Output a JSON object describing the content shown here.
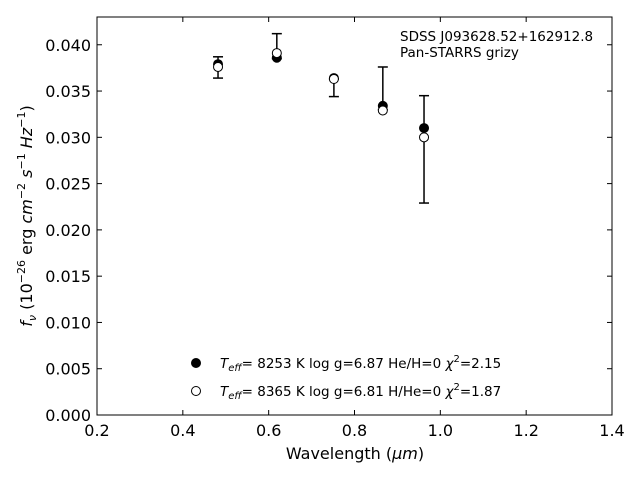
{
  "chart_data": {
    "type": "scatter",
    "xlabel": "Wavelength",
    "xlabel_unit": "μm",
    "ylabel_tex": "f_nu (10^-26 erg cm^-2 s^-1 Hz^-1)",
    "xlim": [
      0.2,
      1.4
    ],
    "ylim": [
      0.0,
      0.043
    ],
    "x_ticks": [
      "0.2",
      "0.4",
      "0.6",
      "0.8",
      "1.0",
      "1.2",
      "1.4"
    ],
    "y_ticks": [
      "0.000",
      "0.005",
      "0.010",
      "0.015",
      "0.020",
      "0.025",
      "0.030",
      "0.035",
      "0.040"
    ],
    "annotation": [
      "SDSS J093628.52+162912.8",
      "Pan-STARRS grizy"
    ],
    "observed": {
      "x": [
        0.482,
        0.619,
        0.752,
        0.866,
        0.962
      ],
      "y": [
        0.0376,
        0.0387,
        0.0362,
        0.0334,
        0.03
      ],
      "yerr_low": [
        0.0364,
        0.0385,
        0.0344,
        0.033,
        0.0229
      ],
      "yerr_high": [
        0.0387,
        0.0412,
        0.0363,
        0.0376,
        0.0345
      ]
    },
    "series": [
      {
        "marker": "filled-circle",
        "legend": "T_eff=  8253 K  log g=6.87  He/H=0  χ²=2.15",
        "x": [
          0.482,
          0.619,
          0.752,
          0.866,
          0.962
        ],
        "y": [
          0.0379,
          0.0386,
          0.0364,
          0.0334,
          0.031
        ]
      },
      {
        "marker": "open-circle",
        "legend": "T_eff=  8365 K  log g=6.81  H/He=0  χ²=1.87",
        "x": [
          0.482,
          0.619,
          0.752,
          0.866,
          0.962
        ],
        "y": [
          0.0376,
          0.0391,
          0.0363,
          0.0329,
          0.03
        ]
      }
    ],
    "legend_position": "lower-center"
  }
}
